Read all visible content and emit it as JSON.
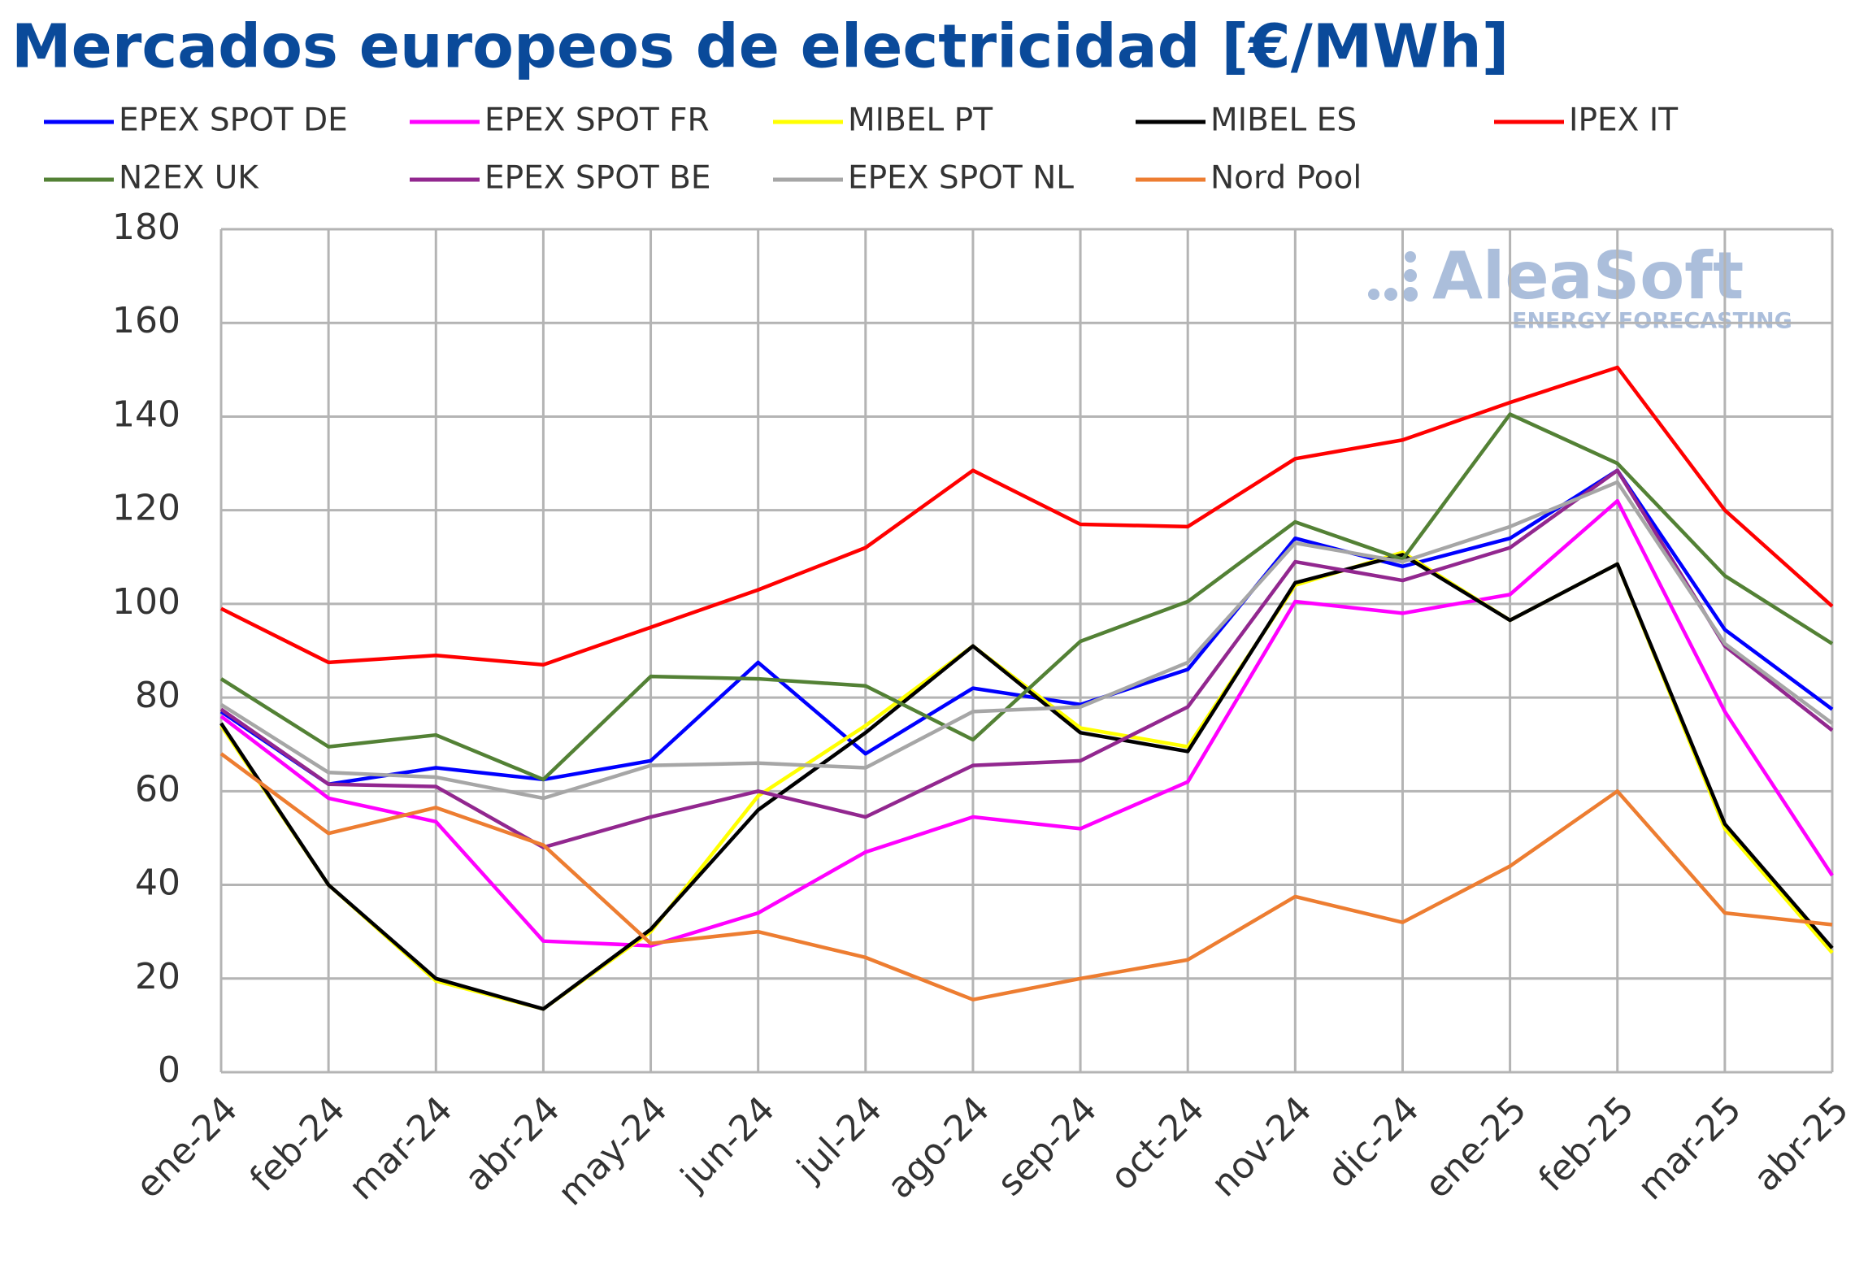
{
  "chart_data": {
    "type": "line",
    "title": "Mercados europeos de electricidad [€/MWh]",
    "watermark": {
      "name": "AleaSoft",
      "tagline": "ENERGY FORECASTING"
    },
    "categories": [
      "ene-24",
      "feb-24",
      "mar-24",
      "abr-24",
      "may-24",
      "jun-24",
      "jul-24",
      "ago-24",
      "sep-24",
      "oct-24",
      "nov-24",
      "dic-24",
      "ene-25",
      "feb-25",
      "mar-25",
      "abr-25"
    ],
    "ylim": [
      0,
      180
    ],
    "yticks": [
      0,
      20,
      40,
      60,
      80,
      100,
      120,
      140,
      160,
      180
    ],
    "grid": true,
    "series": [
      {
        "name": "EPEX SPOT DE",
        "color": "#0000ff",
        "values": [
          77,
          61.5,
          65,
          62.5,
          66.5,
          87.5,
          68,
          82,
          78.5,
          86,
          114,
          108,
          114,
          128.5,
          94.5,
          77.5
        ]
      },
      {
        "name": "EPEX SPOT FR",
        "color": "#ff00ff",
        "values": [
          76,
          58.5,
          53.5,
          28,
          27,
          34,
          47,
          54.5,
          52,
          62,
          100.5,
          98,
          102,
          122,
          77,
          42
        ]
      },
      {
        "name": "MIBEL PT",
        "color": "#ffff00",
        "values": [
          74,
          40,
          19.5,
          13.5,
          30,
          59,
          74,
          91,
          73.5,
          69.5,
          104,
          111,
          96.5,
          108.5,
          52,
          25.5
        ]
      },
      {
        "name": "MIBEL ES",
        "color": "#000000",
        "values": [
          74.5,
          40,
          20,
          13.5,
          30.5,
          56,
          72.5,
          91,
          72.5,
          68.5,
          104.5,
          110.5,
          96.5,
          108.5,
          53,
          26.5
        ]
      },
      {
        "name": "IPEX IT",
        "color": "#ff0000",
        "values": [
          99,
          87.5,
          89,
          87,
          95,
          103,
          112,
          128.5,
          117,
          116.5,
          131,
          135,
          143,
          150.5,
          120,
          99.5
        ]
      },
      {
        "name": "N2EX UK",
        "color": "#538135",
        "values": [
          84,
          69.5,
          72,
          62.5,
          84.5,
          84,
          82.5,
          71,
          92,
          100.5,
          117.5,
          109.5,
          140.5,
          130,
          106,
          91.5
        ]
      },
      {
        "name": "EPEX SPOT BE",
        "color": "#92278f",
        "values": [
          77.5,
          61.5,
          61,
          48,
          54.5,
          60,
          54.5,
          65.5,
          66.5,
          78,
          109,
          105,
          112,
          128.5,
          91,
          73
        ]
      },
      {
        "name": "EPEX SPOT NL",
        "color": "#a6a6a6",
        "values": [
          78.5,
          64,
          63,
          58.5,
          65.5,
          66,
          65,
          77,
          78,
          87.5,
          113,
          109,
          116.5,
          126,
          91.5,
          74.5
        ]
      },
      {
        "name": "Nord Pool",
        "color": "#ed7d31",
        "values": [
          68,
          51,
          56.5,
          48.5,
          27.5,
          30,
          24.5,
          15.5,
          20,
          24,
          37.5,
          32,
          44,
          60,
          34,
          31.5
        ]
      }
    ]
  }
}
